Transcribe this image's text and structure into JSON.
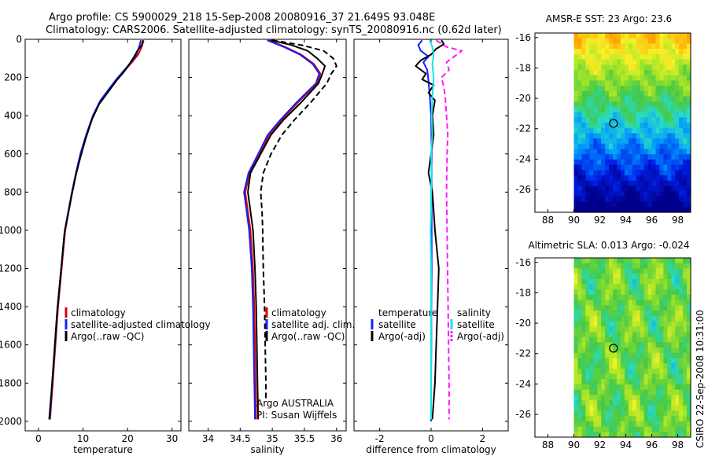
{
  "header": {
    "line1": "Argo profile: CS 5900029_218 15-Sep-2008 20080916_37 21.649S 93.048E",
    "line2": "Climatology: CARS2006. Satellite-adjusted climatology: synTS_20080916.nc (0.62d later)"
  },
  "side_label": "CSIRO 22-Sep-2008 10:31:00",
  "colors": {
    "red": "#e00000",
    "blue": "#1020ff",
    "black": "#000000",
    "cyan": "#18e0e8",
    "magenta": "#ff1aff",
    "map_marker": "#000000"
  },
  "chart_data": [
    {
      "type": "line",
      "xlabel": "temperature",
      "ylim": [
        2050,
        0
      ],
      "xlim": [
        -3,
        32
      ],
      "xticks": [
        0,
        10,
        20,
        30
      ],
      "yticks": [
        0,
        200,
        400,
        600,
        800,
        1000,
        1200,
        1400,
        1600,
        1800,
        2000
      ],
      "legend": [
        "climatology",
        "satellite-adjusted climatology",
        "Argo(..raw -QC)"
      ],
      "series": [
        {
          "name": "climatology",
          "color": "red",
          "dash": "solid",
          "points": [
            [
              23.6,
              5
            ],
            [
              23.2,
              40
            ],
            [
              22.4,
              80
            ],
            [
              21.0,
              120
            ],
            [
              19.5,
              160
            ],
            [
              18.0,
              200
            ],
            [
              16.0,
              260
            ],
            [
              14.0,
              320
            ],
            [
              12.3,
              400
            ],
            [
              10.8,
              500
            ],
            [
              9.5,
              600
            ],
            [
              8.5,
              700
            ],
            [
              7.6,
              800
            ],
            [
              6.8,
              900
            ],
            [
              6.0,
              1000
            ],
            [
              5.2,
              1200
            ],
            [
              4.4,
              1400
            ],
            [
              3.8,
              1600
            ],
            [
              3.2,
              1800
            ],
            [
              2.6,
              1990
            ]
          ]
        },
        {
          "name": "satellite-adjusted climatology",
          "color": "blue",
          "dash": "solid",
          "points": [
            [
              23.0,
              5
            ],
            [
              22.6,
              40
            ],
            [
              22.0,
              80
            ],
            [
              20.8,
              120
            ],
            [
              19.3,
              160
            ],
            [
              17.8,
              200
            ],
            [
              15.8,
              260
            ],
            [
              13.9,
              320
            ],
            [
              12.2,
              400
            ],
            [
              10.7,
              500
            ],
            [
              9.4,
              600
            ],
            [
              8.4,
              700
            ],
            [
              7.5,
              800
            ],
            [
              6.7,
              900
            ],
            [
              5.9,
              1000
            ],
            [
              5.1,
              1200
            ],
            [
              4.3,
              1400
            ],
            [
              3.7,
              1600
            ],
            [
              3.1,
              1800
            ],
            [
              2.5,
              1990
            ]
          ]
        },
        {
          "name": "Argo(..raw -QC)",
          "color": "black",
          "dash": "solid",
          "points": [
            [
              23.5,
              5
            ],
            [
              23.2,
              30
            ],
            [
              22.2,
              60
            ],
            [
              21.5,
              90
            ],
            [
              20.4,
              130
            ],
            [
              19.2,
              170
            ],
            [
              17.4,
              220
            ],
            [
              15.5,
              280
            ],
            [
              13.6,
              340
            ],
            [
              12.0,
              420
            ],
            [
              10.6,
              520
            ],
            [
              9.4,
              620
            ],
            [
              8.3,
              720
            ],
            [
              7.4,
              820
            ],
            [
              6.6,
              920
            ],
            [
              5.8,
              1020
            ],
            [
              5.0,
              1220
            ],
            [
              4.2,
              1420
            ],
            [
              3.6,
              1620
            ],
            [
              3.0,
              1820
            ],
            [
              2.4,
              1990
            ]
          ]
        }
      ]
    },
    {
      "type": "line",
      "xlabel": "salinity",
      "ylim": [
        2050,
        0
      ],
      "xlim": [
        33.7,
        36.15
      ],
      "xticks": [
        34,
        34.5,
        35,
        35.5,
        36
      ],
      "legend": [
        "climatology",
        "satellite adj. clim.",
        "Argo(..raw -QC)"
      ],
      "annotation": [
        "Argo AUSTRALIA",
        "PI: Susan Wijffels"
      ],
      "series": [
        {
          "name": "climatology",
          "color": "red",
          "dash": "solid",
          "points": [
            [
              34.95,
              5
            ],
            [
              35.2,
              40
            ],
            [
              35.45,
              80
            ],
            [
              35.65,
              130
            ],
            [
              35.75,
              180
            ],
            [
              35.7,
              230
            ],
            [
              35.4,
              330
            ],
            [
              35.15,
              420
            ],
            [
              34.95,
              500
            ],
            [
              34.8,
              600
            ],
            [
              34.65,
              700
            ],
            [
              34.58,
              800
            ],
            [
              34.62,
              900
            ],
            [
              34.66,
              1000
            ],
            [
              34.7,
              1200
            ],
            [
              34.72,
              1400
            ],
            [
              34.73,
              1600
            ],
            [
              34.74,
              1800
            ],
            [
              34.75,
              1990
            ]
          ]
        },
        {
          "name": "satellite adj. clim.",
          "color": "blue",
          "dash": "solid",
          "points": [
            [
              34.92,
              5
            ],
            [
              35.18,
              40
            ],
            [
              35.43,
              80
            ],
            [
              35.63,
              130
            ],
            [
              35.73,
              180
            ],
            [
              35.68,
              230
            ],
            [
              35.38,
              330
            ],
            [
              35.13,
              420
            ],
            [
              34.93,
              500
            ],
            [
              34.78,
              600
            ],
            [
              34.63,
              700
            ],
            [
              34.56,
              800
            ],
            [
              34.6,
              900
            ],
            [
              34.64,
              1000
            ],
            [
              34.68,
              1200
            ],
            [
              34.7,
              1400
            ],
            [
              34.71,
              1600
            ],
            [
              34.72,
              1800
            ],
            [
              34.73,
              1990
            ]
          ]
        },
        {
          "name": "Argo(..raw -QC)",
          "color": "black",
          "dash": "solid",
          "points": [
            [
              34.98,
              5
            ],
            [
              35.3,
              30
            ],
            [
              35.55,
              60
            ],
            [
              35.7,
              100
            ],
            [
              35.82,
              140
            ],
            [
              35.78,
              180
            ],
            [
              35.72,
              230
            ],
            [
              35.45,
              330
            ],
            [
              35.18,
              420
            ],
            [
              34.98,
              500
            ],
            [
              34.82,
              600
            ],
            [
              34.66,
              700
            ],
            [
              34.62,
              800
            ],
            [
              34.66,
              900
            ],
            [
              34.7,
              1000
            ],
            [
              34.73,
              1200
            ],
            [
              34.75,
              1400
            ],
            [
              34.76,
              1600
            ],
            [
              34.77,
              1800
            ],
            [
              34.78,
              1990
            ]
          ]
        },
        {
          "name": "Argo(..raw -QC)",
          "color": "black",
          "dash": "dashed",
          "points": [
            [
              35.0,
              5
            ],
            [
              35.45,
              30
            ],
            [
              35.8,
              60
            ],
            [
              35.95,
              100
            ],
            [
              36.0,
              140
            ],
            [
              35.92,
              180
            ],
            [
              35.85,
              230
            ],
            [
              35.6,
              330
            ],
            [
              35.35,
              420
            ],
            [
              35.15,
              500
            ],
            [
              34.98,
              600
            ],
            [
              34.86,
              700
            ],
            [
              34.82,
              800
            ],
            [
              34.84,
              900
            ],
            [
              34.85,
              1000
            ],
            [
              34.86,
              1200
            ],
            [
              34.88,
              1400
            ],
            [
              34.89,
              1600
            ],
            [
              34.9,
              1800
            ],
            [
              34.9,
              1890
            ]
          ]
        }
      ]
    },
    {
      "type": "line",
      "xlabel": "difference from climatology",
      "ylim": [
        2050,
        0
      ],
      "xlim": [
        -3,
        3
      ],
      "xticks": [
        -2,
        0,
        2
      ],
      "legend": {
        "temperature": [
          "temperature",
          "satellite",
          "Argo(-adj)"
        ],
        "salinity": [
          "salinity",
          "satellite",
          "Argo(-adj)"
        ]
      },
      "series": [
        {
          "name": "satellite (temperature)",
          "color": "blue",
          "dash": "solid",
          "points": [
            [
              -0.35,
              5
            ],
            [
              -0.5,
              30
            ],
            [
              -0.4,
              60
            ],
            [
              -0.1,
              90
            ],
            [
              -0.3,
              120
            ],
            [
              -0.15,
              160
            ],
            [
              -0.1,
              220
            ],
            [
              -0.05,
              300
            ],
            [
              0.0,
              400
            ],
            [
              0.02,
              600
            ],
            [
              0.02,
              800
            ],
            [
              0.02,
              1000
            ],
            [
              0.02,
              1200
            ],
            [
              0.01,
              1400
            ],
            [
              0.01,
              1600
            ],
            [
              0.0,
              1800
            ],
            [
              0.0,
              2000
            ]
          ]
        },
        {
          "name": "Argo(-adj) (temperature)",
          "color": "black",
          "dash": "solid",
          "points": [
            [
              0.4,
              5
            ],
            [
              0.5,
              25
            ],
            [
              0.2,
              50
            ],
            [
              0.0,
              80
            ],
            [
              -0.4,
              110
            ],
            [
              -0.6,
              140
            ],
            [
              -0.2,
              180
            ],
            [
              -0.35,
              210
            ],
            [
              0.1,
              240
            ],
            [
              -0.1,
              280
            ],
            [
              0.15,
              320
            ],
            [
              0.05,
              400
            ],
            [
              0.1,
              500
            ],
            [
              0.0,
              600
            ],
            [
              -0.1,
              700
            ],
            [
              0.05,
              800
            ],
            [
              0.1,
              900
            ],
            [
              0.15,
              1000
            ],
            [
              0.3,
              1200
            ],
            [
              0.25,
              1400
            ],
            [
              0.2,
              1600
            ],
            [
              0.15,
              1800
            ],
            [
              0.05,
              1990
            ]
          ]
        },
        {
          "name": "satellite (salinity)",
          "color": "cyan",
          "dash": "solid",
          "points": [
            [
              -0.05,
              5
            ],
            [
              0.05,
              40
            ],
            [
              0.1,
              80
            ],
            [
              0.05,
              130
            ],
            [
              0.1,
              200
            ],
            [
              0.05,
              300
            ],
            [
              0.02,
              400
            ],
            [
              0.05,
              500
            ],
            [
              0.0,
              600
            ],
            [
              0.02,
              700
            ],
            [
              0.0,
              800
            ],
            [
              0.0,
              900
            ],
            [
              -0.02,
              1000
            ],
            [
              0.0,
              1200
            ],
            [
              0.0,
              1400
            ],
            [
              0.0,
              1600
            ],
            [
              0.0,
              1800
            ],
            [
              0.0,
              1990
            ]
          ]
        },
        {
          "name": "Argo(-adj) (salinity)",
          "color": "magenta",
          "dash": "dashed",
          "points": [
            [
              0.2,
              5
            ],
            [
              0.6,
              40
            ],
            [
              1.2,
              60
            ],
            [
              0.9,
              90
            ],
            [
              0.6,
              120
            ],
            [
              0.7,
              160
            ],
            [
              0.4,
              200
            ],
            [
              0.5,
              250
            ],
            [
              0.55,
              300
            ],
            [
              0.6,
              400
            ],
            [
              0.65,
              500
            ],
            [
              0.62,
              600
            ],
            [
              0.6,
              800
            ],
            [
              0.62,
              1000
            ],
            [
              0.64,
              1200
            ],
            [
              0.66,
              1400
            ],
            [
              0.68,
              1600
            ],
            [
              0.7,
              1800
            ],
            [
              0.7,
              1990
            ]
          ]
        }
      ]
    },
    {
      "type": "heatmap",
      "title": "AMSR-E SST: 23 Argo: 23.6",
      "xlim": [
        87,
        99
      ],
      "ylim": [
        -27.5,
        -15.7
      ],
      "xticks": [
        88,
        90,
        92,
        94,
        96,
        98
      ],
      "yticks": [
        -16,
        -18,
        -20,
        -22,
        -24,
        -26
      ],
      "data_xrange": [
        90,
        99
      ],
      "marker": {
        "lon": 93.048,
        "lat": -21.649
      }
    },
    {
      "type": "heatmap",
      "title": "Altimetric SLA: 0.013 Argo: -0.024",
      "xlim": [
        87,
        99
      ],
      "ylim": [
        -27.5,
        -15.7
      ],
      "xticks": [
        88,
        90,
        92,
        94,
        96,
        98
      ],
      "yticks": [
        -16,
        -18,
        -20,
        -22,
        -24,
        -26
      ],
      "data_xrange": [
        90,
        99
      ],
      "marker": {
        "lon": 93.048,
        "lat": -21.649
      }
    }
  ]
}
